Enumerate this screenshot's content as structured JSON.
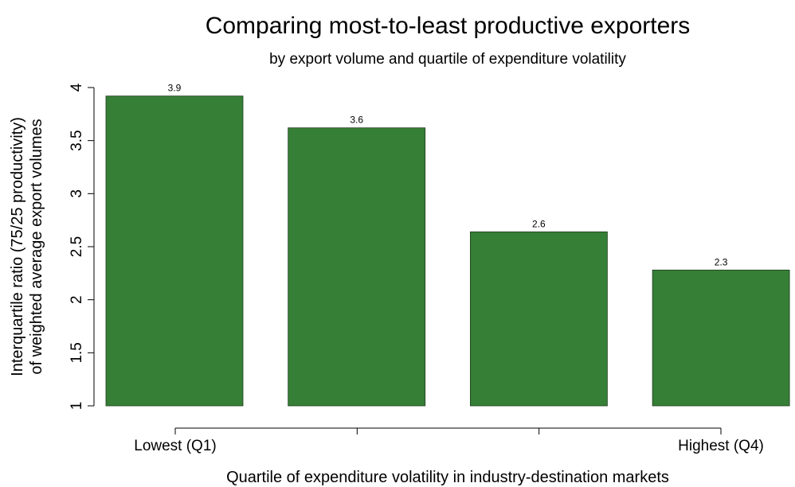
{
  "chart_data": {
    "type": "bar",
    "title": "Comparing most-to-least productive exporters",
    "subtitle": "by export volume and quartile of expenditure volatility",
    "x_label": "Quartile of expenditure volatility in industry-destination markets",
    "y_label": [
      "Interquartile ratio (75/25 productivity)",
      "of weighted average export volumes"
    ],
    "categories": [
      "Lowest (Q1)",
      null,
      null,
      "Highest (Q4)"
    ],
    "values": [
      3.92,
      3.62,
      2.64,
      2.28
    ],
    "value_labels": [
      "3.9",
      "3.6",
      "2.6",
      "2.3"
    ],
    "color": "#367f36",
    "ylim": [
      1,
      4
    ],
    "yticks": [
      1,
      1.5,
      2,
      2.5,
      3,
      3.5,
      4
    ]
  }
}
